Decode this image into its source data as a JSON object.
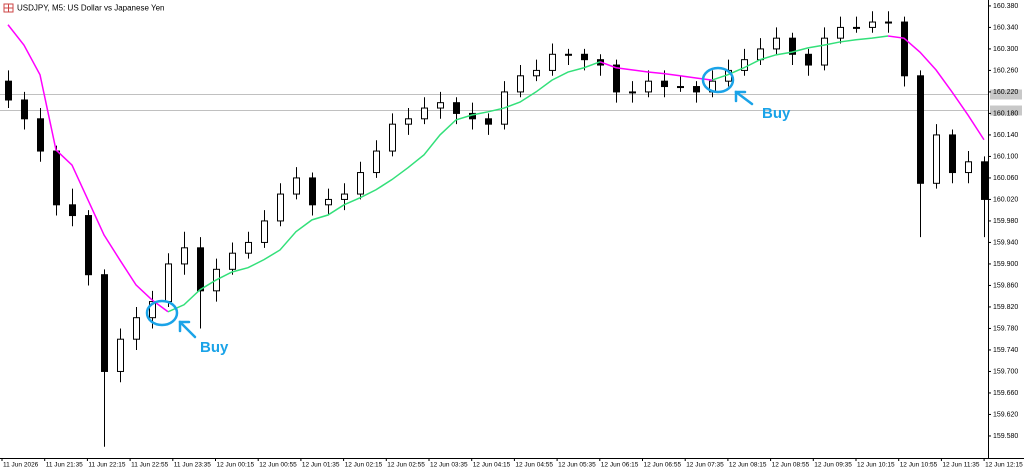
{
  "chart_data": {
    "type": "candlestick",
    "title": "USDJPY, M5: US Dollar vs Japanese Yen",
    "open": [
      160.24,
      160.205,
      160.17,
      160.11,
      160.01,
      159.99,
      159.88,
      159.7,
      159.76,
      159.8,
      159.83,
      159.9,
      159.93,
      159.85,
      159.89,
      159.92,
      159.94,
      159.98,
      160.03,
      160.06,
      160.01,
      160.02,
      160.03,
      160.07,
      160.11,
      160.16,
      160.17,
      160.19,
      160.2,
      160.18,
      160.17,
      160.16,
      160.22,
      160.25,
      160.26,
      160.29,
      160.29,
      160.28,
      160.27,
      160.22,
      160.22,
      160.24,
      160.23,
      160.23,
      160.22,
      160.24,
      160.26,
      160.28,
      160.3,
      160.32,
      160.29,
      160.27,
      160.32,
      160.34,
      160.34,
      160.35,
      160.35,
      160.25,
      160.05,
      160.14,
      160.07,
      160.09
    ],
    "high": [
      160.26,
      160.22,
      160.19,
      160.12,
      160.04,
      160.0,
      159.89,
      159.78,
      159.82,
      159.85,
      159.92,
      159.96,
      159.95,
      159.91,
      159.94,
      159.96,
      160.0,
      160.05,
      160.08,
      160.07,
      160.04,
      160.05,
      160.09,
      160.13,
      160.18,
      160.19,
      160.21,
      160.22,
      160.21,
      160.2,
      160.18,
      160.24,
      160.27,
      160.28,
      160.31,
      160.3,
      160.3,
      160.29,
      160.28,
      160.24,
      160.26,
      160.26,
      160.25,
      160.24,
      160.26,
      160.28,
      160.3,
      160.32,
      160.34,
      160.33,
      160.3,
      160.34,
      160.36,
      160.36,
      160.37,
      160.37,
      160.36,
      160.26,
      160.16,
      160.15,
      160.11,
      160.1
    ],
    "low": [
      160.19,
      160.15,
      160.09,
      159.99,
      159.97,
      159.86,
      159.56,
      159.68,
      159.74,
      159.78,
      159.82,
      159.88,
      159.78,
      159.83,
      159.88,
      159.91,
      159.93,
      159.97,
      160.02,
      159.99,
      159.99,
      160.0,
      160.02,
      160.06,
      160.1,
      160.14,
      160.16,
      160.17,
      160.16,
      160.15,
      160.14,
      160.15,
      160.21,
      160.24,
      160.25,
      160.27,
      160.26,
      160.25,
      160.2,
      160.2,
      160.21,
      160.21,
      160.22,
      160.2,
      160.21,
      160.23,
      160.25,
      160.27,
      160.29,
      160.27,
      160.25,
      160.26,
      160.31,
      160.33,
      160.33,
      160.33,
      160.23,
      159.95,
      160.04,
      160.05,
      160.05,
      159.95
    ],
    "close": [
      160.205,
      160.17,
      160.11,
      160.01,
      159.99,
      159.88,
      159.7,
      159.76,
      159.8,
      159.83,
      159.9,
      159.93,
      159.85,
      159.89,
      159.92,
      159.94,
      159.98,
      160.03,
      160.06,
      160.01,
      160.02,
      160.03,
      160.07,
      160.11,
      160.16,
      160.17,
      160.19,
      160.2,
      160.18,
      160.17,
      160.16,
      160.22,
      160.25,
      160.26,
      160.29,
      160.29,
      160.28,
      160.27,
      160.22,
      160.22,
      160.24,
      160.23,
      160.23,
      160.22,
      160.24,
      160.26,
      160.28,
      160.3,
      160.32,
      160.29,
      160.27,
      160.32,
      160.34,
      160.34,
      160.35,
      160.35,
      160.25,
      160.05,
      160.14,
      160.07,
      160.09,
      160.02
    ],
    "lines": [
      {
        "color": "#ff00ff",
        "values": [
          160.345,
          160.307,
          160.252,
          160.112,
          160.084,
          160.019,
          159.954,
          159.907,
          159.861,
          159.833,
          159.811,
          null,
          null,
          null,
          null,
          null,
          null,
          null,
          null,
          null,
          null,
          null,
          null,
          null,
          null,
          null,
          null,
          null,
          null,
          null,
          null,
          null,
          null,
          null,
          null,
          null,
          null,
          160.276,
          160.265,
          160.261,
          160.257,
          160.254,
          160.25,
          160.246,
          160.242,
          null,
          null,
          null,
          null,
          null,
          null,
          null,
          null,
          null,
          null,
          160.324,
          160.32,
          160.294,
          160.261,
          160.22,
          160.177,
          160.131
        ]
      },
      {
        "color": "#33e07a",
        "values": [
          null,
          null,
          null,
          null,
          null,
          null,
          null,
          null,
          null,
          null,
          159.811,
          159.824,
          159.852,
          159.87,
          159.885,
          159.893,
          159.908,
          159.926,
          159.96,
          159.982,
          159.991,
          160.01,
          160.023,
          160.038,
          160.057,
          160.079,
          160.103,
          160.14,
          160.168,
          160.177,
          160.183,
          160.19,
          160.201,
          160.22,
          160.242,
          160.257,
          160.265,
          160.276,
          null,
          null,
          null,
          null,
          null,
          null,
          160.242,
          160.252,
          160.265,
          160.28,
          160.289,
          160.294,
          160.302,
          160.307,
          160.313,
          160.317,
          160.32,
          160.324,
          null,
          null,
          null,
          null,
          null,
          null
        ]
      }
    ],
    "price_lines": [
      160.216,
      160.187
    ],
    "x_labels": [
      "11 Jun 2026",
      "11 Jun 21:35",
      "11 Jun 22:15",
      "11 Jun 22:55",
      "11 Jun 23:35",
      "12 Jun 00:15",
      "12 Jun 00:55",
      "12 Jun 01:35",
      "12 Jun 02:15",
      "12 Jun 02:55",
      "12 Jun 03:35",
      "12 Jun 04:15",
      "12 Jun 04:55",
      "12 Jun 05:35",
      "12 Jun 06:15",
      "12 Jun 06:55",
      "12 Jun 07:35",
      "12 Jun 08:15",
      "12 Jun 08:55",
      "12 Jun 09:35",
      "12 Jun 10:15",
      "12 Jun 10:55",
      "12 Jun 11:35",
      "12 Jun 12:15"
    ],
    "ylim": [
      159.539,
      160.391
    ],
    "yticks": [
      {
        "value": 160.38,
        "label": "160.380"
      },
      {
        "value": 160.34,
        "label": "160.340"
      },
      {
        "value": 160.3,
        "label": "160.300"
      },
      {
        "value": 160.26,
        "label": "160.260"
      },
      {
        "value": 160.22,
        "label": "160.220"
      },
      {
        "value": 160.18,
        "label": "160.180"
      },
      {
        "value": 160.14,
        "label": "160.140"
      },
      {
        "value": 160.1,
        "label": "160.100"
      },
      {
        "value": 160.06,
        "label": "160.060"
      },
      {
        "value": 160.02,
        "label": "160.020"
      },
      {
        "value": 159.98,
        "label": "159.980"
      },
      {
        "value": 159.94,
        "label": "159.940"
      },
      {
        "value": 159.9,
        "label": "159.900"
      },
      {
        "value": 159.86,
        "label": "159.860"
      },
      {
        "value": 159.82,
        "label": "159.820"
      },
      {
        "value": 159.78,
        "label": "159.780"
      },
      {
        "value": 159.74,
        "label": "159.740"
      },
      {
        "value": 159.7,
        "label": "159.700"
      },
      {
        "value": 159.66,
        "label": "159.660"
      },
      {
        "value": 159.62,
        "label": "159.620"
      },
      {
        "value": 159.58,
        "label": "159.580"
      }
    ],
    "annotations": [
      {
        "text": "Buy",
        "color": "#1aa3e8"
      },
      {
        "text": "Buy",
        "color": "#1aa3e8"
      }
    ]
  }
}
